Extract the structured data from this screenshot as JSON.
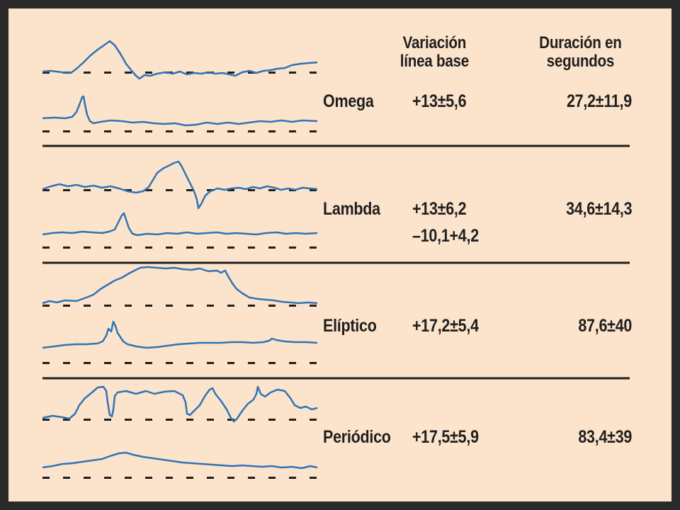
{
  "table": {
    "headers": {
      "baseline_variation": [
        "Variación",
        "línea base"
      ],
      "duration": [
        "Duración en",
        "segundos"
      ]
    },
    "rows": [
      {
        "pattern": "Omega",
        "baseline_variation": [
          "+13±5,6"
        ],
        "duration": "27,2±11,9"
      },
      {
        "pattern": "Lambda",
        "baseline_variation": [
          "+13±6,2",
          "–10,1+4,2"
        ],
        "duration": "34,6±14,3"
      },
      {
        "pattern": "Elíptico",
        "baseline_variation": [
          "+17,2±5,4"
        ],
        "duration": "87,6±40"
      },
      {
        "pattern": "Periódico",
        "baseline_variation": [
          "+17,5±5,9"
        ],
        "duration": "83,4±39"
      }
    ]
  },
  "colors": {
    "background": "#fce4cc",
    "frame": "#2a2a2a",
    "trace": "#2f74b5",
    "text": "#1f1f1f"
  }
}
